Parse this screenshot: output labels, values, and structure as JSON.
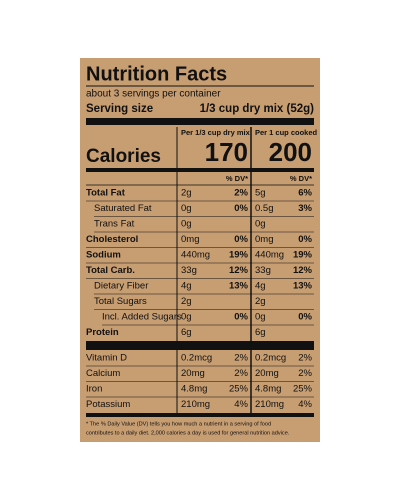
{
  "title": "Nutrition Facts",
  "servings": "about 3 servings per container",
  "serving_size": {
    "label": "Serving size",
    "value": "1/3 cup dry mix (52g)"
  },
  "columns": [
    "Per 1/3 cup dry mix",
    "Per 1 cup cooked"
  ],
  "calories": {
    "label": "Calories",
    "values": [
      "170",
      "200"
    ]
  },
  "dv_header": [
    "% DV*",
    "% DV*"
  ],
  "rows": [
    {
      "label": "Total Fat",
      "bold": true,
      "indent": 0,
      "values": [
        "2g",
        "2%",
        "5g",
        "6%"
      ]
    },
    {
      "label": "Saturated Fat",
      "bold": false,
      "indent": 1,
      "values": [
        "0g",
        "0%",
        "0.5g",
        "3%"
      ]
    },
    {
      "label": "Trans Fat",
      "bold": false,
      "indent": 1,
      "values": [
        "0g",
        null,
        "0g",
        null
      ]
    },
    {
      "label": "Cholesterol",
      "bold": true,
      "indent": 0,
      "values": [
        "0mg",
        "0%",
        "0mg",
        "0%"
      ]
    },
    {
      "label": "Sodium",
      "bold": true,
      "indent": 0,
      "values": [
        "440mg",
        "19%",
        "440mg",
        "19%"
      ]
    },
    {
      "label": "Total Carb.",
      "bold": true,
      "indent": 0,
      "values": [
        "33g",
        "12%",
        "33g",
        "12%"
      ]
    },
    {
      "label": "Dietary Fiber",
      "bold": false,
      "indent": 1,
      "values": [
        "4g",
        "13%",
        "4g",
        "13%"
      ]
    },
    {
      "label": "Total Sugars",
      "bold": false,
      "indent": 1,
      "values": [
        "2g",
        null,
        "2g",
        null
      ]
    },
    {
      "label": "Incl. Added Sugars",
      "bold": false,
      "indent": 2,
      "values": [
        "0g",
        "0%",
        "0g",
        "0%"
      ]
    },
    {
      "label": "Protein",
      "bold": true,
      "indent": 0,
      "values": [
        "6g",
        null,
        "6g",
        null
      ]
    }
  ],
  "vitamins": [
    {
      "label": "Vitamin D",
      "values": [
        "0.2mcg",
        "2%",
        "0.2mcg",
        "2%"
      ]
    },
    {
      "label": "Calcium",
      "values": [
        "20mg",
        "2%",
        "20mg",
        "2%"
      ]
    },
    {
      "label": "Iron",
      "values": [
        "4.8mg",
        "25%",
        "4.8mg",
        "25%"
      ]
    },
    {
      "label": "Potassium",
      "values": [
        "210mg",
        "4%",
        "210mg",
        "4%"
      ]
    }
  ],
  "footnote": [
    "* The % Daily Value (DV) tells you how much a nutrient in a serving of food",
    "contributes to a daily diet. 2,000 calories a day is used for general nutrition advice."
  ]
}
